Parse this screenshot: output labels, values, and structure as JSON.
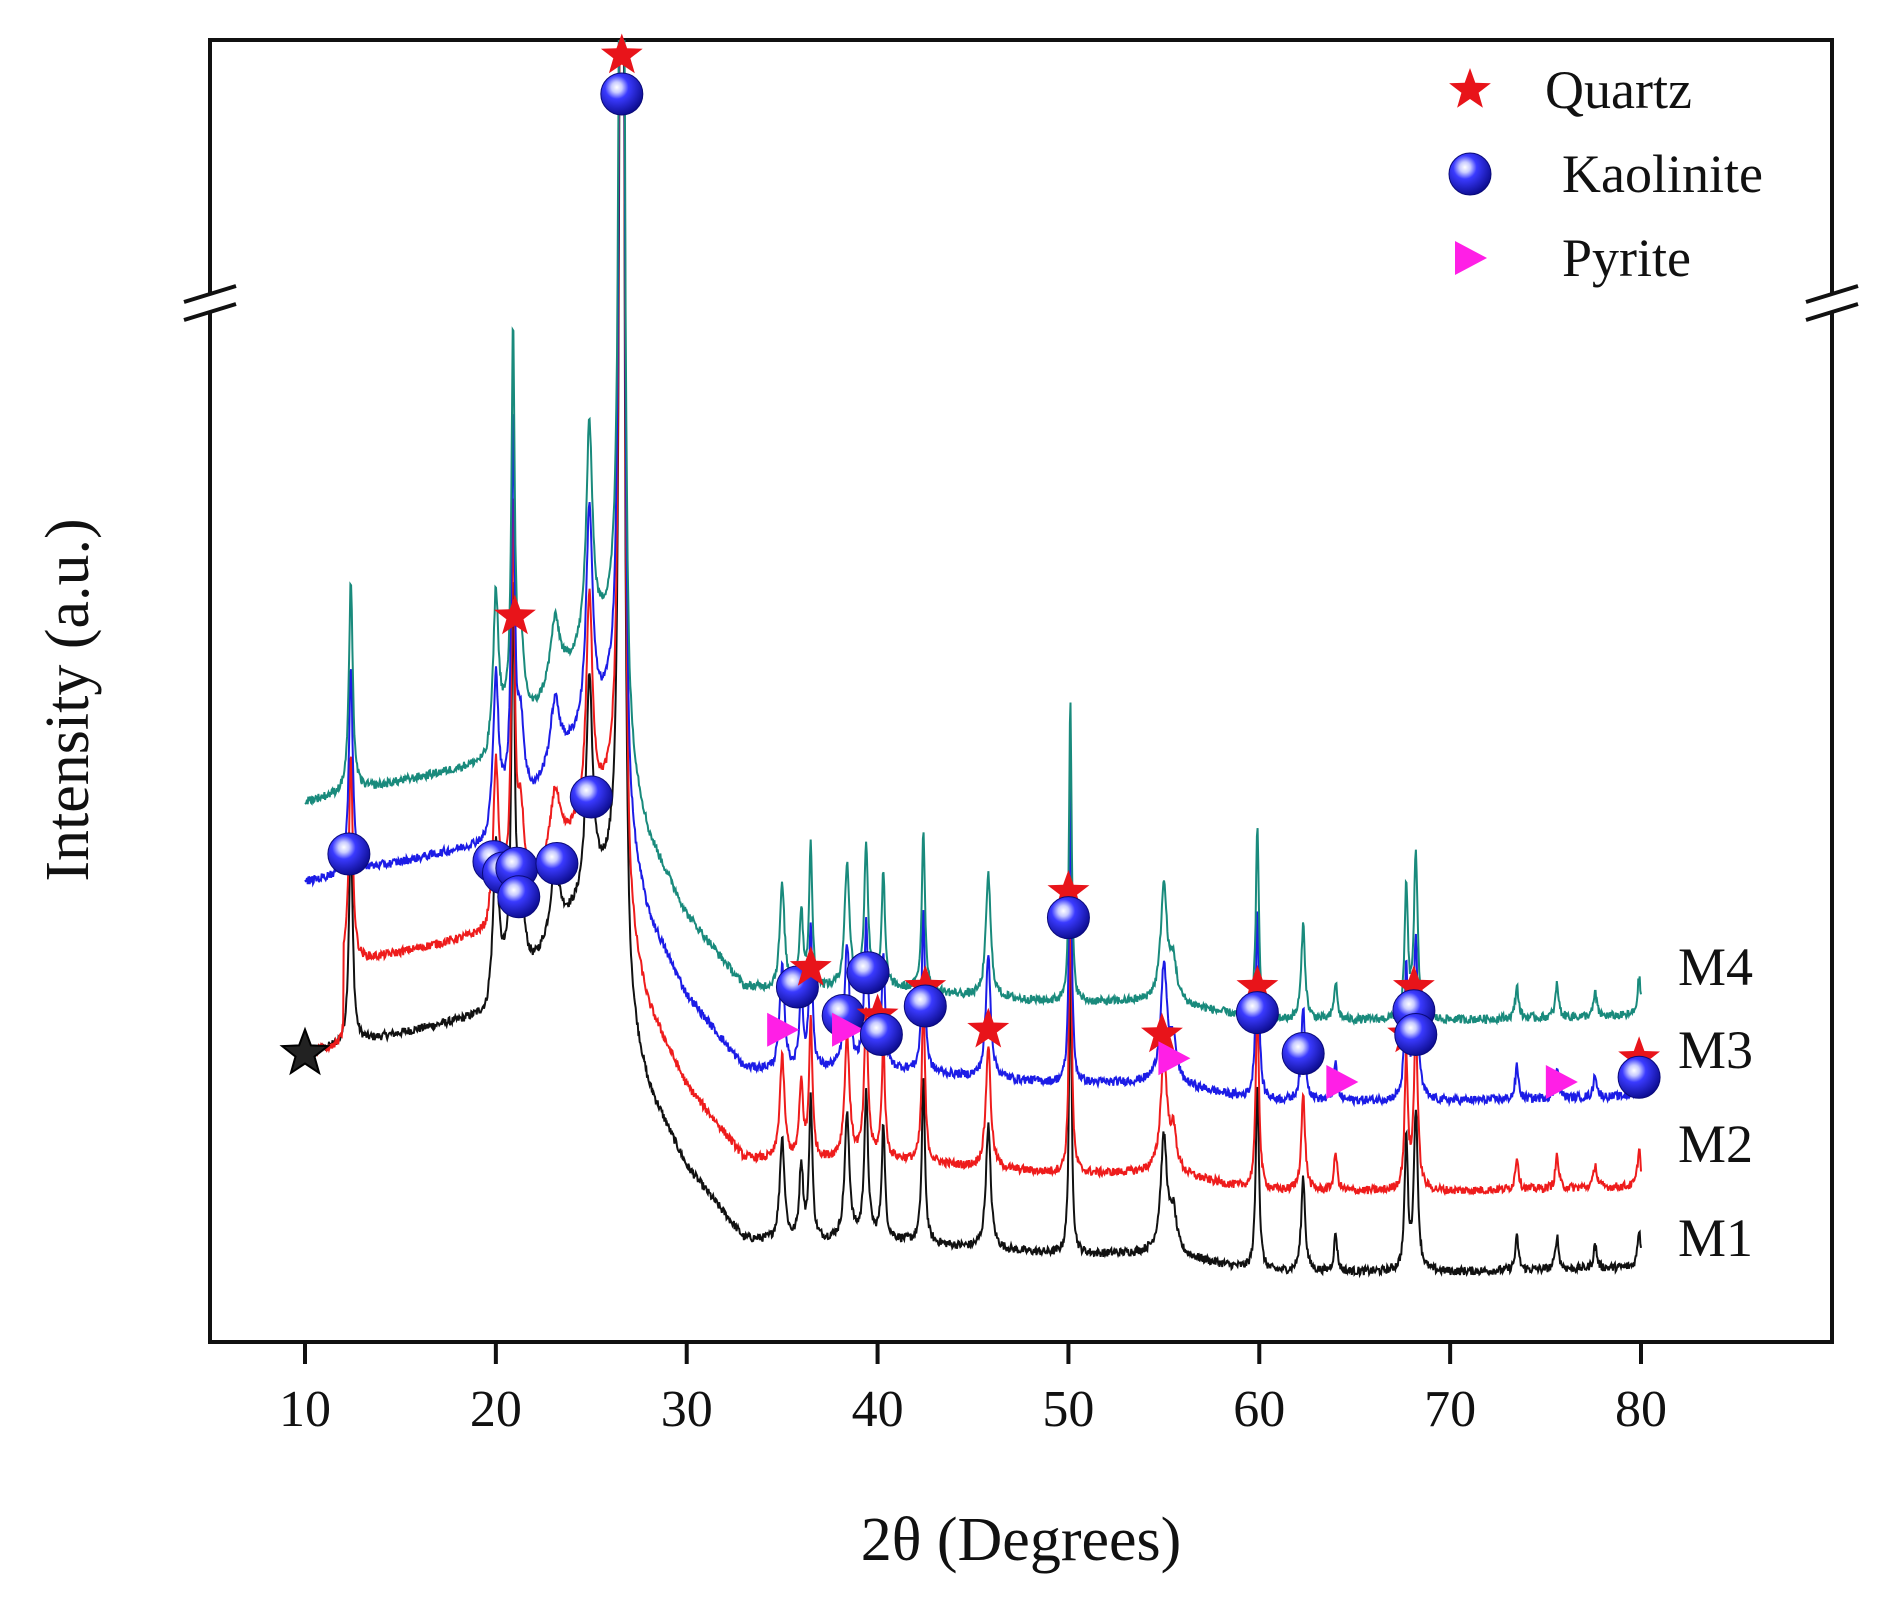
{
  "chart_data": {
    "type": "line",
    "title": "",
    "xlabel": "2θ (Degrees)",
    "ylabel": "Intensity (a.u.)",
    "xlim": [
      5,
      90
    ],
    "x_ticks": [
      10,
      20,
      30,
      40,
      50,
      60,
      70,
      80
    ],
    "y_axis_break": true,
    "grid": false,
    "legend_position": "top-right",
    "legend": [
      {
        "label": "Quartz",
        "marker": "star",
        "color": "#e8141a"
      },
      {
        "label": "Kaolinite",
        "marker": "sphere",
        "color": "#1a1adc"
      },
      {
        "label": "Pyrite",
        "marker": "triangle-right",
        "color": "#ff1fe6"
      }
    ],
    "series": [
      {
        "name": "M1",
        "color": "#111111",
        "offset": 0.0
      },
      {
        "name": "M2",
        "color": "#ee1c1c",
        "offset": 0.85
      },
      {
        "name": "M3",
        "color": "#1c1ce6",
        "offset": 1.8
      },
      {
        "name": "M4",
        "color": "#198a7c",
        "offset": 2.65
      }
    ],
    "baseline_profile": [
      [
        10,
        2.3
      ],
      [
        19.5,
        2.7
      ],
      [
        20,
        3.1
      ],
      [
        22,
        3.2
      ],
      [
        23.5,
        3.6
      ],
      [
        26.5,
        4.3
      ],
      [
        27,
        2.6
      ],
      [
        28,
        1.9
      ],
      [
        30,
        1.1
      ],
      [
        33,
        0.35
      ],
      [
        35,
        0.3
      ],
      [
        40,
        0.35
      ],
      [
        45,
        0.25
      ],
      [
        50,
        0.18
      ],
      [
        55,
        0.2
      ],
      [
        60,
        0.0
      ],
      [
        70,
        0.0
      ],
      [
        80,
        0.05
      ]
    ],
    "peaks": [
      {
        "two_theta": 12.4,
        "height": 2.2,
        "width": 0.12
      },
      {
        "two_theta": 20.0,
        "height": 1.4,
        "width": 0.15
      },
      {
        "two_theta": 20.9,
        "height": 4.0,
        "width": 0.1
      },
      {
        "two_theta": 21.3,
        "height": 0.8,
        "width": 0.2
      },
      {
        "two_theta": 23.1,
        "height": 0.7,
        "width": 0.3
      },
      {
        "two_theta": 24.9,
        "height": 2.3,
        "width": 0.2
      },
      {
        "two_theta": 26.6,
        "height": 30.0,
        "width": 0.08
      },
      {
        "two_theta": 35.0,
        "height": 1.1,
        "width": 0.15
      },
      {
        "two_theta": 36.0,
        "height": 0.8,
        "width": 0.12
      },
      {
        "two_theta": 36.5,
        "height": 1.5,
        "width": 0.1
      },
      {
        "two_theta": 38.4,
        "height": 1.3,
        "width": 0.15
      },
      {
        "two_theta": 39.4,
        "height": 1.5,
        "width": 0.12
      },
      {
        "two_theta": 40.3,
        "height": 1.2,
        "width": 0.1
      },
      {
        "two_theta": 42.4,
        "height": 1.7,
        "width": 0.1
      },
      {
        "two_theta": 45.8,
        "height": 1.3,
        "width": 0.15
      },
      {
        "two_theta": 50.1,
        "height": 3.2,
        "width": 0.08
      },
      {
        "two_theta": 55.0,
        "height": 1.2,
        "width": 0.2
      },
      {
        "two_theta": 55.5,
        "height": 0.4,
        "width": 0.2
      },
      {
        "two_theta": 59.9,
        "height": 2.0,
        "width": 0.1
      },
      {
        "two_theta": 62.3,
        "height": 1.0,
        "width": 0.12
      },
      {
        "two_theta": 64.0,
        "height": 0.4,
        "width": 0.1
      },
      {
        "two_theta": 67.7,
        "height": 1.4,
        "width": 0.1
      },
      {
        "two_theta": 68.2,
        "height": 1.7,
        "width": 0.12
      },
      {
        "two_theta": 73.5,
        "height": 0.35,
        "width": 0.1
      },
      {
        "two_theta": 75.6,
        "height": 0.35,
        "width": 0.1
      },
      {
        "two_theta": 77.6,
        "height": 0.25,
        "width": 0.1
      },
      {
        "two_theta": 79.9,
        "height": 0.4,
        "width": 0.1
      }
    ],
    "annotations": [
      {
        "phase": "Kaolinite",
        "two_theta": 12.3,
        "level": 4.4
      },
      {
        "phase": "Kaolinite",
        "two_theta": 19.9,
        "level": 4.32
      },
      {
        "phase": "Kaolinite",
        "two_theta": 20.4,
        "level": 4.2
      },
      {
        "phase": "Kaolinite",
        "two_theta": 21.1,
        "level": 4.25
      },
      {
        "phase": "Kaolinite",
        "two_theta": 21.2,
        "level": 3.95
      },
      {
        "phase": "Kaolinite",
        "two_theta": 23.2,
        "level": 4.3
      },
      {
        "phase": "Quartz",
        "two_theta": 21.0,
        "level": 6.9
      },
      {
        "phase": "Kaolinite",
        "two_theta": 25.0,
        "level": 5.0
      },
      {
        "phase": "Quartz",
        "two_theta": 26.6,
        "level": 12.45
      },
      {
        "phase": "Kaolinite",
        "two_theta": 26.6,
        "level": 12.1
      },
      {
        "phase": "Kaolinite",
        "two_theta": 35.8,
        "level": 3.0
      },
      {
        "phase": "Quartz",
        "two_theta": 36.5,
        "level": 3.2
      },
      {
        "phase": "Pyrite",
        "two_theta": 35.0,
        "level": 2.55
      },
      {
        "phase": "Kaolinite",
        "two_theta": 38.2,
        "level": 2.7
      },
      {
        "phase": "Pyrite",
        "two_theta": 38.4,
        "level": 2.55
      },
      {
        "phase": "Kaolinite",
        "two_theta": 39.5,
        "level": 3.15
      },
      {
        "phase": "Quartz",
        "two_theta": 40.0,
        "level": 2.7
      },
      {
        "phase": "Kaolinite",
        "two_theta": 40.2,
        "level": 2.5
      },
      {
        "phase": "Quartz",
        "two_theta": 42.5,
        "level": 3.0
      },
      {
        "phase": "Kaolinite",
        "two_theta": 42.5,
        "level": 2.8
      },
      {
        "phase": "Quartz",
        "two_theta": 45.8,
        "level": 2.55
      },
      {
        "phase": "Quartz",
        "two_theta": 50.0,
        "level": 4.0
      },
      {
        "phase": "Kaolinite",
        "two_theta": 50.0,
        "level": 3.73
      },
      {
        "phase": "Quartz",
        "two_theta": 54.9,
        "level": 2.5
      },
      {
        "phase": "Pyrite",
        "two_theta": 55.5,
        "level": 2.25
      },
      {
        "phase": "Quartz",
        "two_theta": 59.9,
        "level": 3.0
      },
      {
        "phase": "Kaolinite",
        "two_theta": 59.9,
        "level": 2.73
      },
      {
        "phase": "Kaolinite",
        "two_theta": 62.3,
        "level": 2.3
      },
      {
        "phase": "Pyrite",
        "two_theta": 64.3,
        "level": 2.0
      },
      {
        "phase": "Quartz",
        "two_theta": 67.8,
        "level": 2.5
      },
      {
        "phase": "Quartz",
        "two_theta": 68.1,
        "level": 3.0
      },
      {
        "phase": "Kaolinite",
        "two_theta": 68.1,
        "level": 2.75
      },
      {
        "phase": "Kaolinite",
        "two_theta": 68.2,
        "level": 2.5
      },
      {
        "phase": "Pyrite",
        "two_theta": 75.8,
        "level": 2.0
      },
      {
        "phase": "Quartz",
        "two_theta": 79.9,
        "level": 2.25
      },
      {
        "phase": "Kaolinite",
        "two_theta": 79.9,
        "level": 2.05
      },
      {
        "phase": "Quartz-start",
        "two_theta": 10.0,
        "level": 2.3
      }
    ]
  }
}
